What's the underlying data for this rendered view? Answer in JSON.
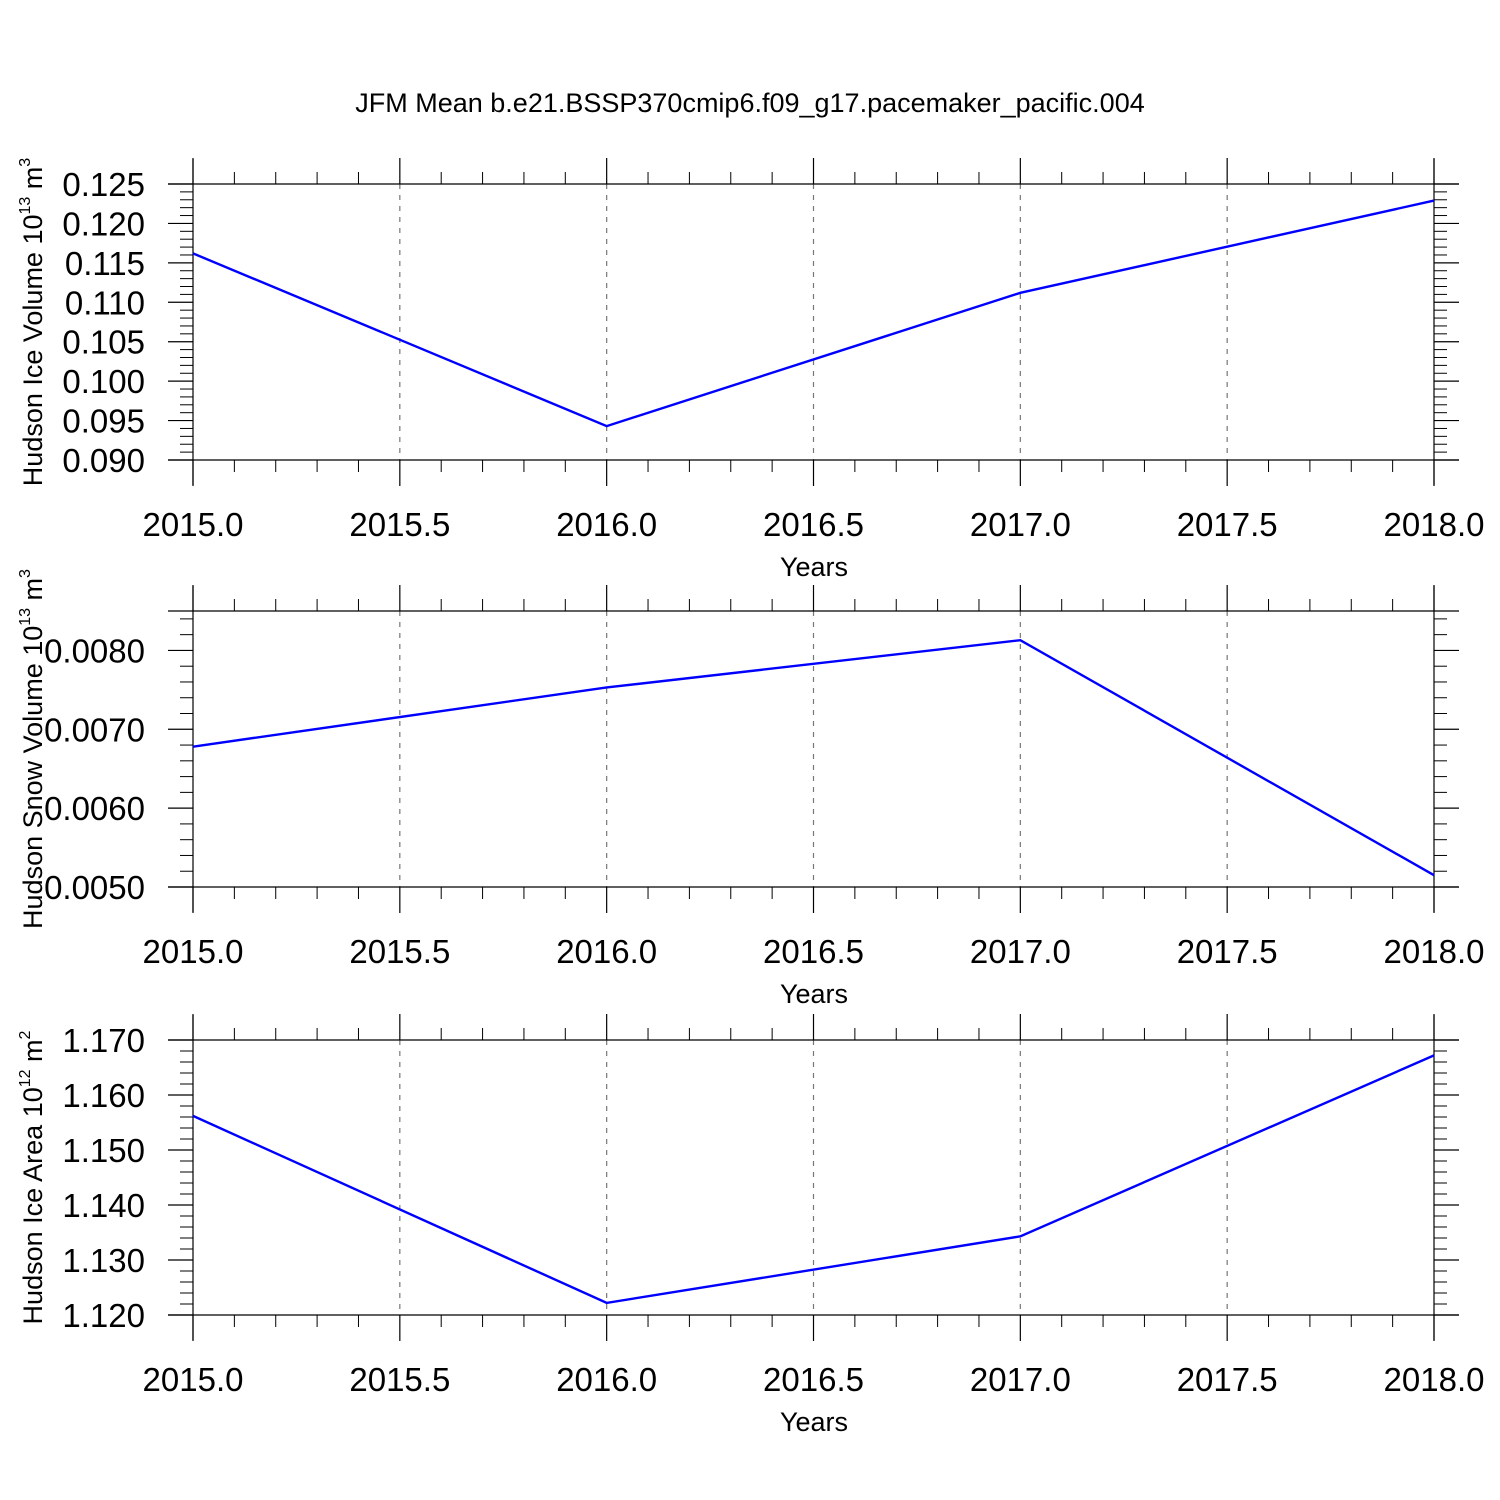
{
  "title": "JFM Mean b.e21.BSSP370cmip6.f09_g17.pacemaker_pacific.004",
  "chart_data": [
    {
      "type": "line",
      "ylabel": "Hudson Ice Volume 10",
      "ylabel_sup": "13",
      "ylabel_unit": " m",
      "ylabel_unit_sup": "3",
      "xlabel": "Years",
      "x": [
        2015,
        2016,
        2017,
        2018
      ],
      "series": [
        {
          "values": [
            0.1162,
            0.0943,
            0.1112,
            0.1229
          ],
          "color": "#0000ff"
        }
      ],
      "xlim": [
        2015.0,
        2018.0
      ],
      "ylim": [
        0.09,
        0.125
      ],
      "xticks": [
        "2015.0",
        "2015.5",
        "2016.0",
        "2016.5",
        "2017.0",
        "2017.5",
        "2018.0"
      ],
      "yticks": [
        "0.090",
        "0.095",
        "0.100",
        "0.105",
        "0.110",
        "0.115",
        "0.120",
        "0.125"
      ],
      "grid": "vertical dashed"
    },
    {
      "type": "line",
      "ylabel": "Hudson Snow Volume 10",
      "ylabel_sup": "13",
      "ylabel_unit": " m",
      "ylabel_unit_sup": "3",
      "xlabel": "Years",
      "x": [
        2015,
        2016,
        2017,
        2018
      ],
      "series": [
        {
          "values": [
            0.00678,
            0.00753,
            0.00813,
            0.00515
          ],
          "color": "#0000ff"
        }
      ],
      "xlim": [
        2015.0,
        2018.0
      ],
      "ylim": [
        0.005,
        0.0085
      ],
      "xticks": [
        "2015.0",
        "2015.5",
        "2016.0",
        "2016.5",
        "2017.0",
        "2017.5",
        "2018.0"
      ],
      "yticks": [
        "0.0050",
        "0.0060",
        "0.0070",
        "0.0080"
      ],
      "grid": "vertical dashed"
    },
    {
      "type": "line",
      "ylabel": "Hudson Ice Area 10",
      "ylabel_sup": "12",
      "ylabel_unit": " m",
      "ylabel_unit_sup": "2",
      "xlabel": "Years",
      "x": [
        2015,
        2016,
        2017,
        2018
      ],
      "series": [
        {
          "values": [
            1.1562,
            1.1222,
            1.1343,
            1.1672
          ],
          "color": "#0000ff"
        }
      ],
      "xlim": [
        2015.0,
        2018.0
      ],
      "ylim": [
        1.12,
        1.17
      ],
      "xticks": [
        "2015.0",
        "2015.5",
        "2016.0",
        "2016.5",
        "2017.0",
        "2017.5",
        "2018.0"
      ],
      "yticks": [
        "1.120",
        "1.130",
        "1.140",
        "1.150",
        "1.160",
        "1.170"
      ],
      "grid": "vertical dashed"
    }
  ]
}
